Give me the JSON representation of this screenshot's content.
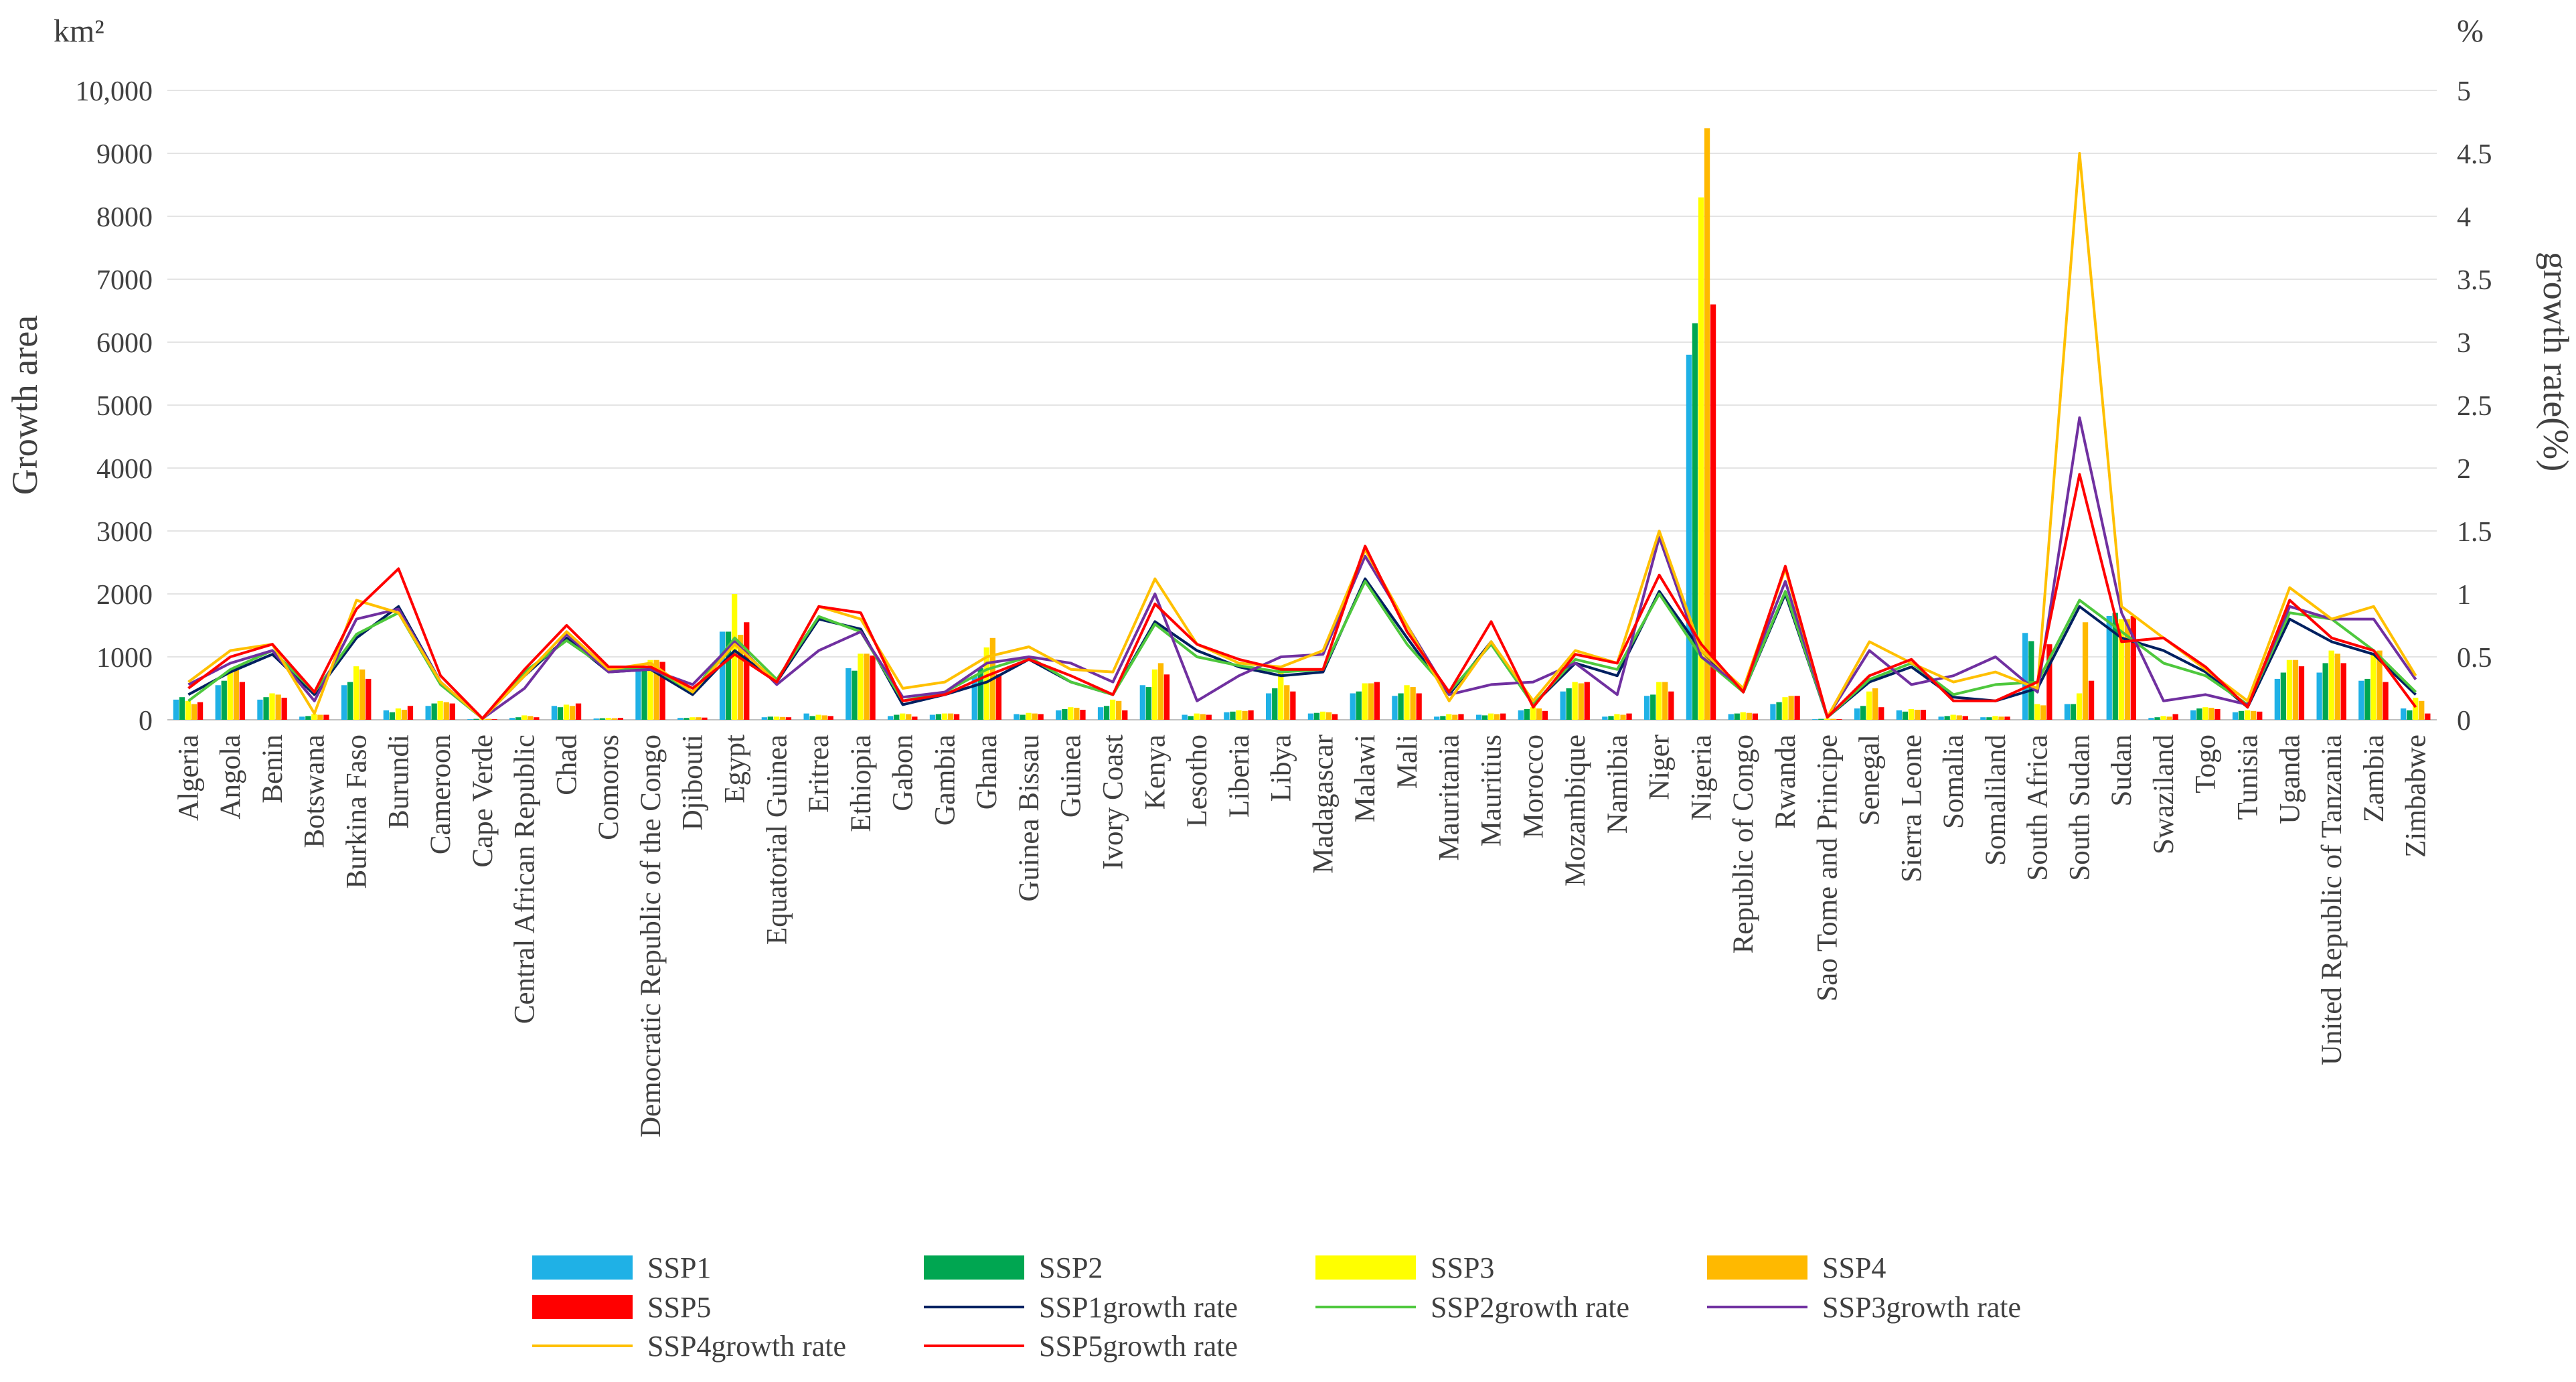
{
  "chart_data": {
    "type": "bar",
    "unit_left": "km²",
    "unit_right": "%",
    "ylabel": "Growth area",
    "ylabel_right": "growth rate(%)",
    "ylim": [
      0,
      10000
    ],
    "ylim_right": [
      0,
      5
    ],
    "y_ticks": [
      "0",
      "1000",
      "2000",
      "3000",
      "4000",
      "5000",
      "6000",
      "7000",
      "8000",
      "9000",
      "10,000"
    ],
    "y_ticks_right": [
      "0",
      "0.5",
      "1",
      "1.5",
      "2",
      "2.5",
      "3",
      "3.5",
      "4",
      "4.5",
      "5"
    ],
    "categories": [
      "Algeria",
      "Angola",
      "Benin",
      "Botswana",
      "Burkina Faso",
      "Burundi",
      "Cameroon",
      "Cape Verde",
      "Central African Republic",
      "Chad",
      "Comoros",
      "Democratic Republic of the Congo",
      "Djibouti",
      "Egypt",
      "Equatorial Guinea",
      "Eritrea",
      "Ethiopia",
      "Gabon",
      "Gambia",
      "Ghana",
      "Guinea Bissau",
      "Guinea",
      "Ivory Coast",
      "Kenya",
      "Lesotho",
      "Liberia",
      "Libya",
      "Madagascar",
      "Malawi",
      "Mali",
      "Mauritania",
      "Mauritius",
      "Morocco",
      "Mozambique",
      "Namibia",
      "Niger",
      "Nigeria",
      "Republic of Congo",
      "Rwanda",
      "Sao Tome and Principe",
      "Senegal",
      "Sierra Leone",
      "Somalia",
      "Somaliland",
      "South Africa",
      "South Sudan",
      "Sudan",
      "Swaziland",
      "Togo",
      "Tunisia",
      "Uganda",
      "United Republic of Tanzania",
      "Zambia",
      "Zimbabwe"
    ],
    "series": [
      {
        "name": "SSP1",
        "kind": "bar",
        "color": "#1fb1e6",
        "values": [
          320,
          550,
          320,
          50,
          550,
          150,
          220,
          10,
          30,
          220,
          20,
          780,
          30,
          1400,
          40,
          100,
          820,
          60,
          80,
          700,
          90,
          150,
          200,
          550,
          80,
          120,
          420,
          100,
          420,
          380,
          50,
          80,
          150,
          450,
          50,
          380,
          5800,
          90,
          250,
          10,
          180,
          150,
          50,
          40,
          1380,
          250,
          1650,
          30,
          150,
          120,
          650,
          750,
          620,
          180
        ]
      },
      {
        "name": "SSP2",
        "kind": "bar",
        "color": "#00a651",
        "values": [
          360,
          620,
          360,
          60,
          600,
          120,
          260,
          15,
          40,
          200,
          25,
          850,
          30,
          1400,
          50,
          60,
          780,
          80,
          90,
          820,
          80,
          170,
          220,
          520,
          60,
          130,
          500,
          110,
          450,
          420,
          60,
          70,
          170,
          500,
          60,
          400,
          6300,
          100,
          280,
          15,
          220,
          130,
          60,
          40,
          1250,
          250,
          1700,
          40,
          180,
          140,
          750,
          900,
          650,
          150
        ]
      },
      {
        "name": "SSP3",
        "kind": "bar",
        "color": "#ffff00",
        "values": [
          300,
          750,
          420,
          90,
          850,
          180,
          300,
          20,
          70,
          240,
          30,
          950,
          40,
          2000,
          50,
          80,
          1050,
          100,
          100,
          1150,
          110,
          200,
          320,
          800,
          100,
          150,
          800,
          130,
          580,
          550,
          90,
          100,
          200,
          600,
          90,
          600,
          8300,
          120,
          360,
          20,
          450,
          170,
          80,
          60,
          250,
          420,
          1600,
          60,
          200,
          150,
          950,
          1100,
          1050,
          350
        ]
      },
      {
        "name": "SSP4",
        "kind": "bar",
        "color": "#ffb900",
        "values": [
          250,
          850,
          400,
          80,
          800,
          160,
          280,
          15,
          60,
          220,
          25,
          950,
          40,
          1350,
          45,
          70,
          1050,
          90,
          100,
          1300,
          100,
          190,
          300,
          900,
          90,
          140,
          550,
          120,
          580,
          520,
          80,
          90,
          180,
          580,
          80,
          600,
          9400,
          110,
          380,
          15,
          500,
          160,
          70,
          50,
          230,
          1550,
          1600,
          50,
          190,
          140,
          950,
          1050,
          1100,
          300
        ]
      },
      {
        "name": "SSP5",
        "kind": "bar",
        "color": "#ff0000",
        "values": [
          280,
          600,
          350,
          80,
          650,
          220,
          260,
          10,
          40,
          260,
          30,
          920,
          35,
          1550,
          40,
          60,
          1020,
          50,
          90,
          720,
          90,
          160,
          150,
          720,
          80,
          150,
          450,
          90,
          600,
          420,
          90,
          100,
          140,
          600,
          100,
          450,
          6600,
          100,
          380,
          10,
          200,
          160,
          60,
          50,
          1200,
          620,
          1650,
          90,
          170,
          130,
          850,
          900,
          600,
          100
        ]
      },
      {
        "name": "SSP1growth rate",
        "kind": "line",
        "color": "#002060",
        "values": [
          0.2,
          0.38,
          0.52,
          0.2,
          0.65,
          0.9,
          0.3,
          0.01,
          0.35,
          0.65,
          0.38,
          0.4,
          0.2,
          0.55,
          0.3,
          0.8,
          0.72,
          0.12,
          0.2,
          0.3,
          0.48,
          0.3,
          0.2,
          0.78,
          0.55,
          0.42,
          0.35,
          0.38,
          1.12,
          0.65,
          0.2,
          0.62,
          0.12,
          0.45,
          0.35,
          1.02,
          0.55,
          0.22,
          1.0,
          0.02,
          0.3,
          0.42,
          0.18,
          0.15,
          0.25,
          0.9,
          0.65,
          0.55,
          0.38,
          0.1,
          0.8,
          0.62,
          0.52,
          0.2
        ]
      },
      {
        "name": "SSP2growth rate",
        "kind": "line",
        "color": "#4ec83d",
        "values": [
          0.15,
          0.4,
          0.55,
          0.22,
          0.68,
          0.85,
          0.28,
          0.01,
          0.38,
          0.63,
          0.4,
          0.42,
          0.22,
          0.65,
          0.32,
          0.82,
          0.7,
          0.15,
          0.22,
          0.4,
          0.5,
          0.3,
          0.2,
          0.76,
          0.5,
          0.43,
          0.38,
          0.4,
          1.1,
          0.6,
          0.22,
          0.6,
          0.12,
          0.48,
          0.4,
          1.0,
          0.5,
          0.22,
          1.02,
          0.02,
          0.32,
          0.45,
          0.2,
          0.28,
          0.3,
          0.95,
          0.7,
          0.45,
          0.35,
          0.12,
          0.85,
          0.8,
          0.55,
          0.22
        ]
      },
      {
        "name": "SSP3growth rate",
        "kind": "line",
        "color": "#7030a0",
        "values": [
          0.28,
          0.45,
          0.55,
          0.15,
          0.8,
          0.88,
          0.3,
          0.01,
          0.25,
          0.68,
          0.38,
          0.4,
          0.28,
          0.62,
          0.28,
          0.55,
          0.7,
          0.18,
          0.22,
          0.45,
          0.5,
          0.45,
          0.3,
          1.0,
          0.15,
          0.35,
          0.5,
          0.52,
          1.3,
          0.75,
          0.2,
          0.28,
          0.3,
          0.45,
          0.2,
          1.45,
          0.5,
          0.25,
          1.1,
          0.02,
          0.55,
          0.28,
          0.35,
          0.5,
          0.22,
          2.4,
          0.85,
          0.15,
          0.2,
          0.12,
          0.9,
          0.8,
          0.8,
          0.32
        ]
      },
      {
        "name": "SSP4growth rate",
        "kind": "line",
        "color": "#ffc000",
        "values": [
          0.3,
          0.55,
          0.6,
          0.05,
          0.95,
          0.85,
          0.3,
          0.01,
          0.35,
          0.7,
          0.4,
          0.45,
          0.22,
          0.6,
          0.3,
          0.9,
          0.8,
          0.25,
          0.3,
          0.5,
          0.58,
          0.4,
          0.38,
          1.12,
          0.6,
          0.45,
          0.42,
          0.55,
          1.35,
          0.75,
          0.15,
          0.62,
          0.15,
          0.55,
          0.45,
          1.5,
          0.55,
          0.25,
          1.2,
          0.02,
          0.62,
          0.45,
          0.3,
          0.38,
          0.25,
          4.5,
          0.9,
          0.65,
          0.4,
          0.15,
          1.05,
          0.8,
          0.9,
          0.35
        ]
      },
      {
        "name": "SSP5growth rate",
        "kind": "line",
        "color": "#ff0000",
        "values": [
          0.25,
          0.5,
          0.6,
          0.22,
          0.88,
          1.2,
          0.35,
          0.01,
          0.4,
          0.75,
          0.42,
          0.42,
          0.25,
          0.52,
          0.3,
          0.9,
          0.85,
          0.15,
          0.2,
          0.35,
          0.48,
          0.35,
          0.2,
          0.92,
          0.6,
          0.48,
          0.4,
          0.4,
          1.38,
          0.7,
          0.22,
          0.78,
          0.1,
          0.52,
          0.45,
          1.15,
          0.6,
          0.22,
          1.22,
          0.02,
          0.35,
          0.48,
          0.15,
          0.15,
          0.3,
          1.95,
          0.62,
          0.65,
          0.42,
          0.1,
          0.95,
          0.65,
          0.55,
          0.1
        ]
      }
    ],
    "legend": {
      "position": "bottom"
    }
  }
}
